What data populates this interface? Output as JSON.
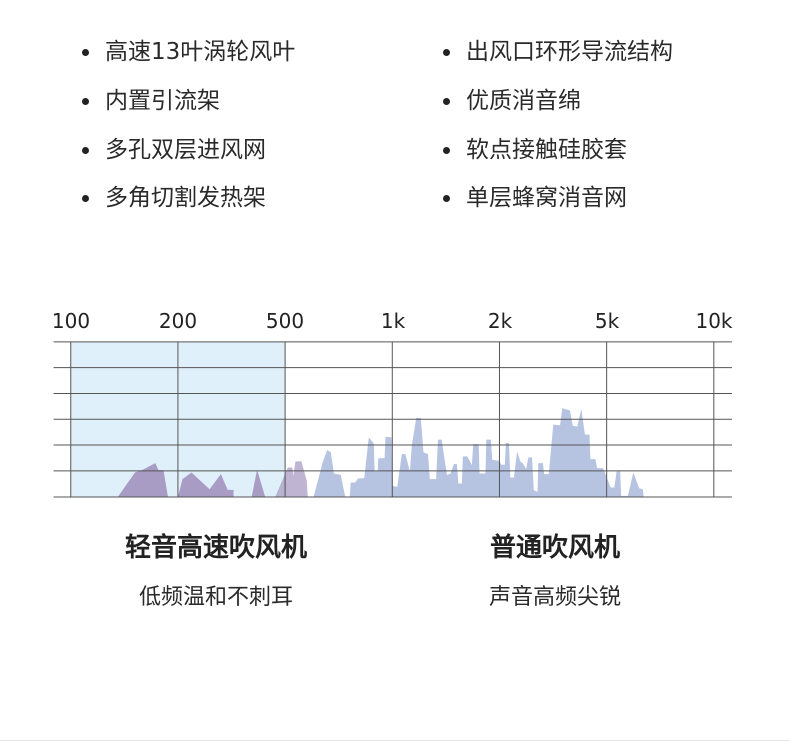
{
  "features": {
    "left": [
      "高速13叶涡轮风叶",
      "内置引流架",
      "多孔双层进风网",
      "多角切割发热架"
    ],
    "right": [
      "出风口环形导流结构",
      "优质消音绵",
      "软点接触硅胶套",
      "单层蜂窝消音网"
    ]
  },
  "chart": {
    "ticks": [
      "100",
      "200",
      "500",
      "1k",
      "2k",
      "5k",
      "10k"
    ],
    "colors": {
      "highlight": "#dff0fa",
      "quiet_spectrum": "#a99cc4",
      "normal_spectrum": "#b6c4e2",
      "grid": "#555555"
    }
  },
  "comparison": {
    "left": {
      "title": "轻音高速吹风机",
      "subtitle": "低频温和不刺耳"
    },
    "right": {
      "title": "普通吹风机",
      "subtitle": "声音高频尖锐"
    }
  }
}
